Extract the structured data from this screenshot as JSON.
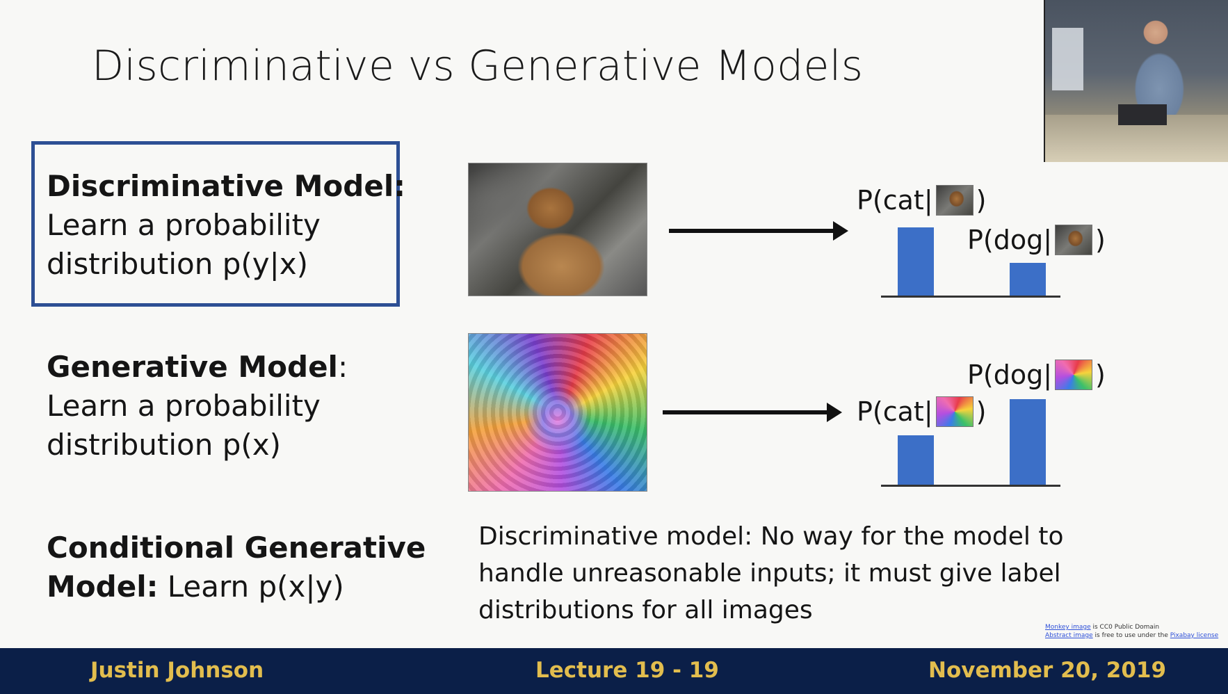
{
  "slide": {
    "title": "Discriminative vs Generative Models",
    "discriminative": {
      "heading": "Discriminative Model:",
      "line1": "Learn a probability",
      "line2": "distribution p(y|x)"
    },
    "generative": {
      "heading": "Generative Model",
      "colon": ":",
      "line1": "Learn a probability",
      "line2": "distribution p(x)"
    },
    "conditional": {
      "heading1": "Conditional Generative",
      "heading2": "Model:",
      "rest": " Learn p(x|y)"
    },
    "row1": {
      "cat_prefix": "P(cat|",
      "dog_prefix": "P(dog|",
      "close": ")",
      "cat_value": 0.62,
      "dog_value": 0.3
    },
    "row2": {
      "cat_prefix": "P(cat|",
      "dog_prefix": "P(dog|",
      "close": ")",
      "cat_value": 0.45,
      "dog_value": 0.78
    },
    "note": "Discriminative model: No way for the model to handle unreasonable inputs; it must give label distributions for all images",
    "credits": {
      "monkey_link": "Monkey image",
      "monkey_rest": " is CC0 Public Domain",
      "abstract_link": "Abstract image",
      "abstract_rest": " is free to use under the ",
      "license_link": "Pixabay license"
    }
  },
  "footer": {
    "author": "Justin Johnson",
    "lecture": "Lecture 19 - 19",
    "date": "November 20, 2019"
  },
  "colors": {
    "bar": "#3c6fc7",
    "box_border": "#2d4f94",
    "footer_bg": "#0b1f48",
    "footer_text": "#e2bd4e"
  }
}
